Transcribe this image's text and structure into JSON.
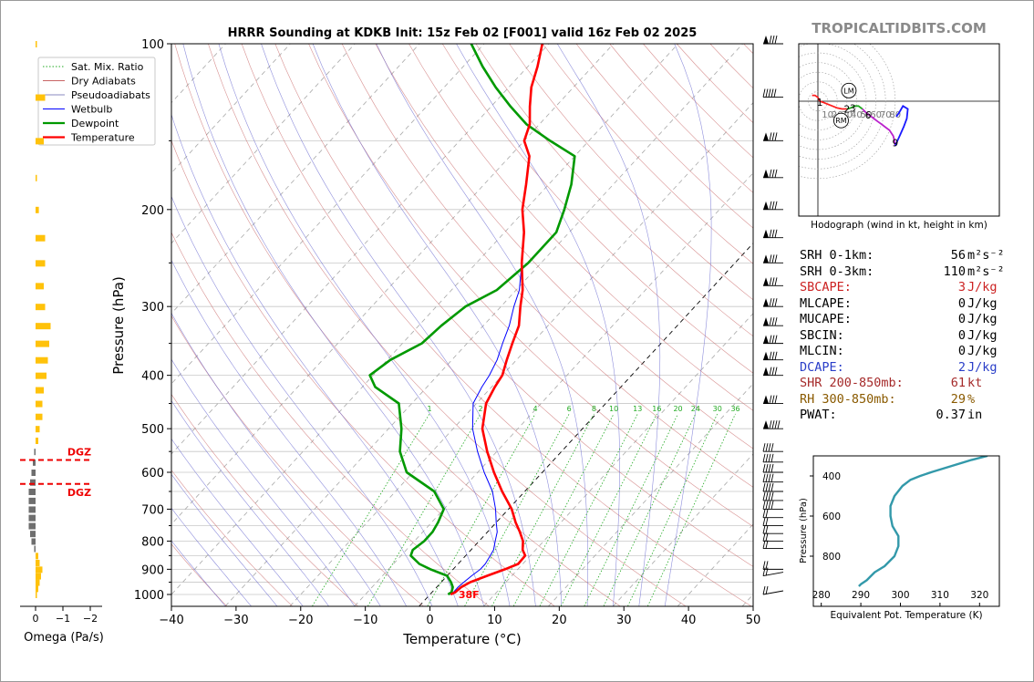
{
  "brand": "TROPICALTIDBITS.COM",
  "colors": {
    "temperature": "#ff0000",
    "dewpoint": "#009900",
    "wetbulb": "#0000ff",
    "dry": "#c86464",
    "moist": "#6a6ad0",
    "mix": "#22aa22",
    "theta": "#3399aa"
  },
  "chart_data": [
    {
      "type": "line",
      "title": "HRRR Sounding at KDKB Init: 15z Feb 02 [F001] valid 16z Feb 02 2025",
      "xlabel": "Temperature (°C)",
      "ylabel": "Pressure (hPa)",
      "x_ticks": [
        "−40",
        "−30",
        "−20",
        "−10",
        "0",
        "10",
        "20",
        "30",
        "40",
        "50"
      ],
      "y_ticks": [
        "100",
        "200",
        "300",
        "400",
        "500",
        "600",
        "700",
        "800",
        "900",
        "1000"
      ],
      "xlim": [
        -40,
        50
      ],
      "ylim": [
        1050,
        100
      ],
      "y_scale": "log",
      "legend": [
        {
          "label": "Sat. Mix. Ratio",
          "kind": "mix"
        },
        {
          "label": "Dry Adiabats",
          "kind": "dry"
        },
        {
          "label": "Pseudoadiabats",
          "kind": "moist"
        },
        {
          "label": "Wetbulb",
          "kind": "wetbulb"
        },
        {
          "label": "Dewpoint",
          "kind": "dewpoint"
        },
        {
          "label": "Temperature",
          "kind": "temperature"
        }
      ],
      "legend_position": "top-left",
      "mix_ratio_labels": [
        "1",
        "2",
        "4",
        "6",
        "8",
        "10",
        "13",
        "16",
        "20",
        "24",
        "30",
        "36"
      ],
      "mix_ratio_values": [
        1,
        2,
        4,
        6,
        8,
        10,
        13,
        16,
        20,
        24,
        30,
        36
      ],
      "surface_label": "38F",
      "series": [
        {
          "name": "Temperature",
          "pressure": [
            1000,
            990,
            970,
            950,
            925,
            900,
            880,
            850,
            830,
            800,
            770,
            740,
            700,
            650,
            600,
            550,
            500,
            450,
            420,
            400,
            375,
            350,
            325,
            300,
            280,
            250,
            220,
            200,
            180,
            160,
            150,
            140,
            130,
            120,
            110,
            100
          ],
          "temperature": [
            3.2,
            3.6,
            3.8,
            4.5,
            6.2,
            8,
            9.3,
            9.2,
            8,
            6.8,
            5,
            3,
            0.5,
            -3.5,
            -7.5,
            -11.5,
            -15.5,
            -18.5,
            -19.5,
            -20,
            -21.5,
            -23,
            -24.5,
            -27,
            -29,
            -33,
            -37,
            -40.5,
            -43.5,
            -47,
            -50,
            -51.5,
            -54,
            -56.5,
            -58.5,
            -61
          ]
        },
        {
          "name": "Dewpoint",
          "pressure": [
            1000,
            990,
            970,
            950,
            925,
            900,
            880,
            850,
            830,
            800,
            770,
            740,
            700,
            650,
            600,
            550,
            500,
            450,
            420,
            400,
            375,
            350,
            325,
            300,
            280,
            250,
            220,
            200,
            180,
            160,
            150,
            140,
            130,
            120,
            110,
            100
          ],
          "temperature": [
            2.8,
            3,
            2.5,
            1.5,
            0,
            -3.5,
            -6,
            -8.5,
            -9,
            -8.5,
            -8.5,
            -9,
            -10,
            -14,
            -21,
            -25,
            -28,
            -32,
            -38,
            -40.5,
            -39.5,
            -37,
            -36.5,
            -35.5,
            -33,
            -32,
            -32,
            -34,
            -36.5,
            -40,
            -46,
            -52,
            -57,
            -62,
            -67,
            -72
          ]
        },
        {
          "name": "Wetbulb",
          "pressure": [
            1000,
            990,
            970,
            950,
            925,
            900,
            880,
            850,
            830,
            800,
            770,
            740,
            700,
            650,
            600,
            550,
            500,
            450,
            420,
            400,
            375,
            350,
            325,
            300,
            280,
            250,
            220,
            200,
            180,
            160,
            150,
            140,
            130,
            120,
            110,
            100
          ],
          "temperature": [
            3,
            3.3,
            3.3,
            3.5,
            3.8,
            4.2,
            4.2,
            3.8,
            3.5,
            2.5,
            1.5,
            0,
            -2,
            -5,
            -9,
            -13,
            -17,
            -20.5,
            -21.5,
            -22,
            -23,
            -24.5,
            -26,
            -28,
            -29.5,
            -33,
            -37,
            -40.5,
            -43.5,
            -47,
            -50,
            -51.5,
            -54,
            -56.5,
            -58.5,
            -61
          ]
        }
      ],
      "wind_barbs_position": "right"
    },
    {
      "type": "bar",
      "xlabel": "Omega (Pa/s)",
      "x_ticks": [
        "0",
        "−1",
        "−2"
      ],
      "xlim": [
        0.2,
        -2.2
      ],
      "dgz_label": "DGZ",
      "dgz_pressure": [
        570,
        630
      ],
      "pressure": [
        100,
        125,
        150,
        175,
        200,
        225,
        250,
        275,
        300,
        325,
        350,
        375,
        400,
        425,
        450,
        475,
        500,
        525,
        550,
        575,
        600,
        625,
        650,
        675,
        700,
        725,
        750,
        775,
        800,
        825,
        850,
        875,
        900,
        925,
        950,
        975,
        1000
      ],
      "omega": [
        -0.05,
        -0.35,
        -0.3,
        -0.05,
        -0.12,
        -0.35,
        -0.35,
        -0.3,
        -0.35,
        -0.55,
        -0.5,
        -0.45,
        -0.4,
        -0.3,
        -0.25,
        -0.25,
        -0.15,
        -0.1,
        0.05,
        0.1,
        0.15,
        0.2,
        0.25,
        0.25,
        0.25,
        0.25,
        0.25,
        0.2,
        0.15,
        0.05,
        -0.1,
        -0.15,
        -0.25,
        -0.2,
        -0.15,
        -0.1,
        -0.05
      ]
    },
    {
      "type": "line",
      "title": "Hodograph (wind in kt, height in km)",
      "rings": [
        10,
        20,
        30,
        40,
        50,
        60,
        70,
        80
      ],
      "ring_labels": [
        "10",
        "20",
        "30",
        "40",
        "50",
        "60",
        "70",
        "80"
      ],
      "height_labels": [
        {
          "km": "1",
          "u": 2,
          "v": -1
        },
        {
          "km": "2",
          "u": 30,
          "v": -8
        },
        {
          "km": "3",
          "u": 36,
          "v": -7
        },
        {
          "km": "6",
          "u": 52,
          "v": -14
        },
        {
          "km": "9",
          "u": 80,
          "v": -43
        }
      ],
      "markers": [
        {
          "label": "LM",
          "u": 32,
          "v": 11
        },
        {
          "label": "RM",
          "u": 24,
          "v": -20
        }
      ],
      "u": [
        -6,
        -3,
        0,
        2,
        5,
        10,
        15,
        20,
        25,
        30,
        34,
        38,
        42,
        46,
        50,
        54,
        58,
        62,
        66,
        70,
        74,
        76,
        78,
        79,
        80
      ],
      "v": [
        6,
        6,
        4,
        0,
        -1,
        -3,
        -5,
        -7,
        -8,
        -8,
        -7,
        -5,
        -5,
        -8,
        -12,
        -15,
        -18,
        -21,
        -24,
        -27,
        -30,
        -33,
        -36,
        -40,
        -46
      ],
      "u_upper": [
        80,
        85,
        89,
        92,
        93,
        88,
        84,
        81
      ],
      "v_upper": [
        -46,
        -35,
        -26,
        -18,
        -8,
        -5,
        -12,
        -16
      ]
    },
    {
      "type": "line",
      "xlabel": "Equivalent Pot. Temperature (K)",
      "ylabel": "Pressure (hPa)",
      "x_ticks": [
        "280",
        "290",
        "300",
        "310",
        "320"
      ],
      "y_ticks": [
        "400",
        "600",
        "800"
      ],
      "xlim": [
        278,
        325
      ],
      "ylim": [
        1050,
        300
      ],
      "pressure": [
        950,
        940,
        920,
        900,
        880,
        850,
        800,
        750,
        700,
        650,
        600,
        550,
        500,
        450,
        420,
        400,
        380,
        350,
        320,
        300
      ],
      "theta_e": [
        289.5,
        290,
        291.5,
        292.5,
        293.5,
        296,
        298.5,
        299.5,
        299.5,
        298,
        297.5,
        297.5,
        298.5,
        300.5,
        302.5,
        305,
        308,
        313,
        318,
        322
      ]
    }
  ],
  "indices": [
    {
      "label": "SRH 0-1km:",
      "value": "56",
      "unit": "m²s⁻²",
      "color": "#000000"
    },
    {
      "label": "SRH 0-3km:",
      "value": "110",
      "unit": "m²s⁻²",
      "color": "#000000"
    },
    {
      "label": "SBCAPE:",
      "value": "3",
      "unit": "J/kg",
      "color": "#cc2222"
    },
    {
      "label": "MLCAPE:",
      "value": "0",
      "unit": "J/kg",
      "color": "#000000"
    },
    {
      "label": "MUCAPE:",
      "value": "0",
      "unit": "J/kg",
      "color": "#000000"
    },
    {
      "label": "SBCIN:",
      "value": "0",
      "unit": "J/kg",
      "color": "#000000"
    },
    {
      "label": "MLCIN:",
      "value": "0",
      "unit": "J/kg",
      "color": "#000000"
    },
    {
      "label": "DCAPE:",
      "value": "2",
      "unit": "J/kg",
      "color": "#2a3ec8"
    },
    {
      "label": "SHR 200-850mb:",
      "value": "61",
      "unit": "kt",
      "color": "#a52a2a"
    },
    {
      "label": "RH 300-850mb:",
      "value": "29",
      "unit": "%",
      "color": "#8a5a00"
    },
    {
      "label": "PWAT:",
      "value": "0.37",
      "unit": "in",
      "color": "#000000"
    }
  ]
}
